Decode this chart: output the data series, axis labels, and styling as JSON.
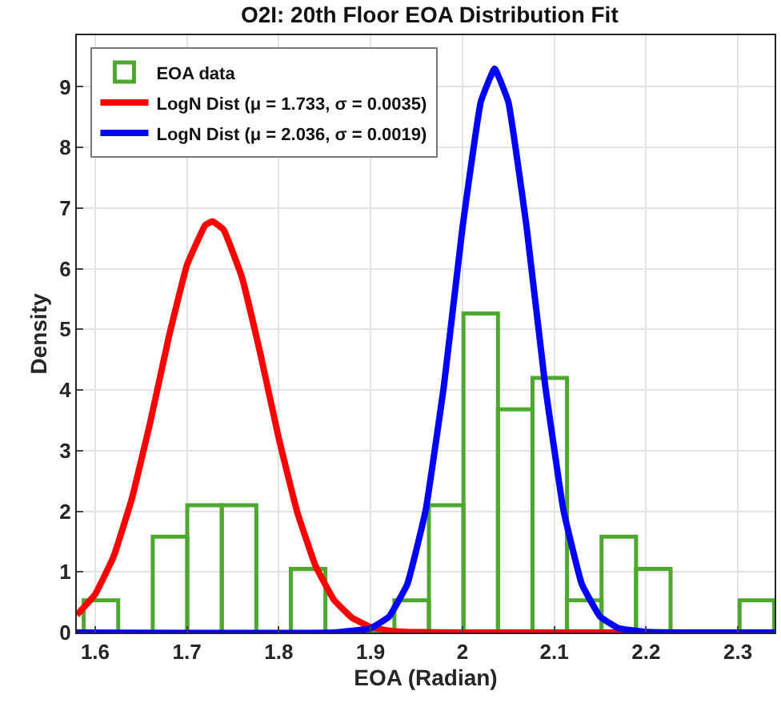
{
  "chart_data": {
    "type": "histogram",
    "title": "O2I: 20th Floor EOA Distribution Fit",
    "xlabel": "EOA (Radian)",
    "ylabel": "Density",
    "xlim": [
      1.58,
      2.34
    ],
    "xticks": [
      1.6,
      1.7,
      1.8,
      1.9,
      2,
      2.1,
      2.2,
      2.3
    ],
    "ylim": [
      0,
      9.85
    ],
    "yticks": [
      0,
      1,
      2,
      3,
      4,
      5,
      6,
      7,
      8,
      9
    ],
    "grid": true,
    "legend": "top left",
    "series": [
      {
        "name": "EOA data",
        "color": "#4ea72e",
        "bins": [
          1.5875,
          1.6251,
          1.6627,
          1.7003,
          1.7379,
          1.7755,
          1.8131,
          1.8507,
          1.8883,
          1.9259,
          1.9635,
          2.0011,
          2.0387,
          2.0763,
          2.1139,
          2.1515,
          2.1891,
          2.2267,
          2.2643,
          2.3019,
          2.3395
        ],
        "values": [
          0.53,
          0,
          1.58,
          2.1,
          2.1,
          0,
          1.05,
          0,
          0,
          0.53,
          2.1,
          5.26,
          3.68,
          4.2,
          0.53,
          1.58,
          1.05,
          0,
          0,
          0.53
        ]
      },
      {
        "name": "LogN Dist (μ = 1.733, σ = 0.0035)",
        "type": "line",
        "color": "#ff0000",
        "x": [
          1.58,
          1.6,
          1.62,
          1.64,
          1.66,
          1.68,
          1.7,
          1.72,
          1.728,
          1.74,
          1.76,
          1.78,
          1.8,
          1.82,
          1.84,
          1.86,
          1.88,
          1.9,
          1.92,
          1.94,
          2.0,
          2.1,
          2.2
        ],
        "values": [
          0.29,
          0.63,
          1.25,
          2.21,
          3.47,
          4.86,
          6.06,
          6.72,
          6.78,
          6.64,
          5.85,
          4.59,
          3.2,
          1.99,
          1.1,
          0.54,
          0.24,
          0.09,
          0.03,
          0.01,
          0,
          0,
          0
        ]
      },
      {
        "name": "LogN Dist (μ = 2.036, σ = 0.0019)",
        "type": "line",
        "color": "#0000ff",
        "x": [
          1.58,
          1.86,
          1.9,
          1.92,
          1.94,
          1.96,
          1.98,
          2.0,
          2.02,
          2.035,
          2.05,
          2.07,
          2.09,
          2.11,
          2.13,
          2.15,
          2.17,
          2.2,
          2.25,
          2.34
        ],
        "values": [
          0,
          0,
          0.07,
          0.26,
          0.8,
          2.02,
          4.09,
          6.67,
          8.75,
          9.3,
          8.75,
          6.67,
          4.09,
          2.02,
          0.8,
          0.26,
          0.07,
          0.01,
          0,
          0
        ]
      }
    ]
  }
}
